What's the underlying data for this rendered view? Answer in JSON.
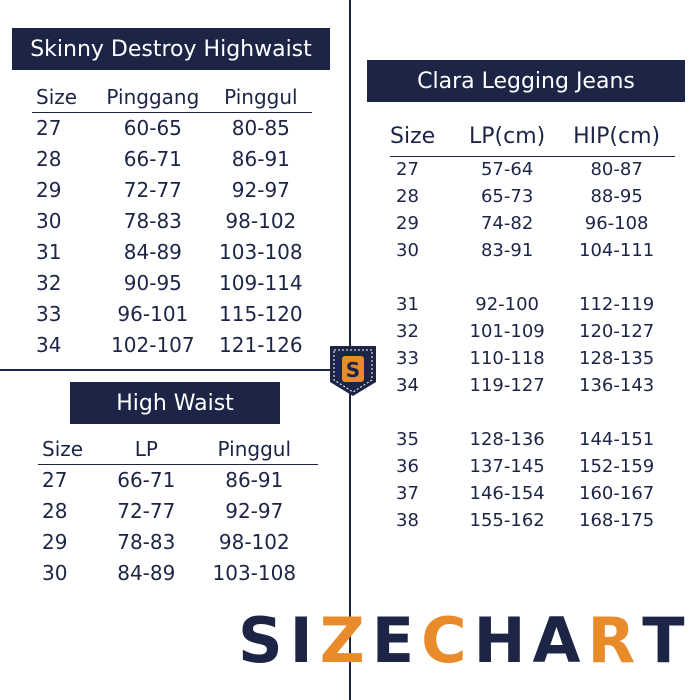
{
  "colors": {
    "navy": "#1d2547",
    "orange": "#e98b2a",
    "background": "#ffffff"
  },
  "skinny": {
    "title": "Skinny Destroy Highwaist",
    "headers": [
      "Size",
      "Pinggang",
      "Pinggul"
    ],
    "rows": [
      [
        "27",
        "60-65",
        "80-85"
      ],
      [
        "28",
        "66-71",
        "86-91"
      ],
      [
        "29",
        "72-77",
        "92-97"
      ],
      [
        "30",
        "78-83",
        "98-102"
      ],
      [
        "31",
        "84-89",
        "103-108"
      ],
      [
        "32",
        "90-95",
        "109-114"
      ],
      [
        "33",
        "96-101",
        "115-120"
      ],
      [
        "34",
        "102-107",
        "121-126"
      ]
    ]
  },
  "highwaist": {
    "title": "High Waist",
    "headers": [
      "Size",
      "LP",
      "Pinggul"
    ],
    "rows": [
      [
        "27",
        "66-71",
        "86-91"
      ],
      [
        "28",
        "72-77",
        "92-97"
      ],
      [
        "29",
        "78-83",
        "98-102"
      ],
      [
        "30",
        "84-89",
        "103-108"
      ]
    ]
  },
  "clara": {
    "title": "Clara Legging Jeans",
    "headers": [
      "Size",
      "LP(cm)",
      "HIP(cm)"
    ],
    "rows": [
      [
        "27",
        "57-64",
        "80-87"
      ],
      [
        "28",
        "65-73",
        "88-95"
      ],
      [
        "29",
        "74-82",
        "96-108"
      ],
      [
        "30",
        "83-91",
        "104-111"
      ],
      [
        "31",
        "92-100",
        "112-119"
      ],
      [
        "32",
        "101-109",
        "120-127"
      ],
      [
        "33",
        "110-118",
        "128-135"
      ],
      [
        "34",
        "119-127",
        "136-143"
      ],
      [
        "35",
        "128-136",
        "144-151"
      ],
      [
        "36",
        "137-145",
        "152-159"
      ],
      [
        "37",
        "146-154",
        "160-167"
      ],
      [
        "38",
        "155-162",
        "168-175"
      ]
    ]
  },
  "logo": {
    "letter": "S",
    "icon": "pocket-badge-icon"
  },
  "footer": {
    "title": "SIZECHART"
  }
}
